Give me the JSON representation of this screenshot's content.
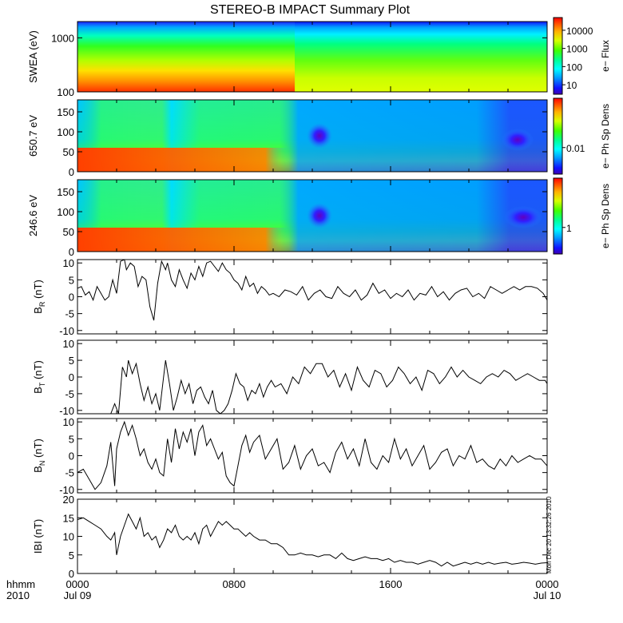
{
  "title": "STEREO-B IMPACT Summary Plot",
  "stamp": "Mon Dec 20 13:32:26 2010",
  "x_axis": {
    "unit_label": "hhmm",
    "year_label": "2010",
    "ticks": [
      {
        "t": 0,
        "top": "0000",
        "bottom": "Jul 09"
      },
      {
        "t": 8,
        "top": "0800",
        "bottom": ""
      },
      {
        "t": 16,
        "top": "1600",
        "bottom": ""
      },
      {
        "t": 24,
        "top": "0000",
        "bottom": "Jul 10"
      }
    ]
  },
  "chart_data": [
    {
      "type": "heatmap",
      "name": "swea",
      "ylabel": "SWEA (eV)",
      "yscale": "log",
      "ylim": [
        100,
        2000
      ],
      "yticks": [
        100,
        1000
      ],
      "ytick_labels": [
        "100",
        "1000"
      ],
      "colorbar_label": "e− Flux",
      "colorbar_ticks": [
        "10",
        "100",
        "1000",
        "10000"
      ],
      "colorbar_log": true,
      "colorbar_range": [
        3,
        50000
      ]
    },
    {
      "type": "heatmap",
      "name": "pad650",
      "ylabel": "650.7 eV",
      "ylim": [
        0,
        180
      ],
      "yticks": [
        0,
        50,
        100,
        150
      ],
      "ytick_labels": [
        "0",
        "50",
        "100",
        "150"
      ],
      "colorbar_label": "e− Ph Sp Dens",
      "colorbar_ticks": [
        "0.01"
      ]
    },
    {
      "type": "heatmap",
      "name": "pad246",
      "ylabel": "246.6 eV",
      "ylim": [
        0,
        180
      ],
      "yticks": [
        0,
        50,
        100,
        150
      ],
      "ytick_labels": [
        "0",
        "50",
        "100",
        "150"
      ],
      "colorbar_label": "e− Ph Sp Dens",
      "colorbar_ticks": [
        "1"
      ]
    },
    {
      "type": "line",
      "name": "BR",
      "ylabel_main": "B",
      "ylabel_sub": "R",
      "ylabel_unit": "(nT)",
      "ylim": [
        -11,
        11
      ],
      "yticks": [
        -10,
        -5,
        0,
        5,
        10
      ],
      "x": [
        0,
        0.2,
        0.4,
        0.6,
        0.8,
        1.0,
        1.2,
        1.4,
        1.6,
        1.8,
        2.0,
        2.2,
        2.4,
        2.5,
        2.7,
        2.9,
        3.1,
        3.3,
        3.5,
        3.7,
        3.9,
        4.1,
        4.3,
        4.5,
        4.6,
        4.8,
        5.0,
        5.2,
        5.4,
        5.6,
        5.8,
        6.0,
        6.2,
        6.4,
        6.6,
        6.8,
        7.0,
        7.2,
        7.4,
        7.6,
        7.8,
        8.0,
        8.2,
        8.4,
        8.6,
        8.8,
        9.0,
        9.2,
        9.4,
        9.6,
        9.8,
        10.0,
        10.3,
        10.6,
        10.9,
        11.2,
        11.5,
        11.8,
        12.1,
        12.4,
        12.7,
        13.0,
        13.3,
        13.6,
        13.9,
        14.2,
        14.5,
        14.8,
        15.1,
        15.4,
        15.7,
        16.0,
        16.3,
        16.6,
        16.9,
        17.2,
        17.5,
        17.8,
        18.1,
        18.4,
        18.7,
        19.0,
        19.3,
        19.6,
        19.9,
        20.2,
        20.5,
        20.8,
        21.1,
        21.4,
        21.7,
        22.0,
        22.3,
        22.6,
        22.9,
        23.2,
        23.5,
        23.8,
        24.0
      ],
      "values": [
        2.5,
        3,
        0.5,
        1.5,
        -1,
        3,
        1,
        -1,
        0,
        5,
        1,
        10.5,
        11,
        8,
        10,
        9,
        3,
        6,
        5,
        -3,
        -7,
        4,
        10.5,
        8,
        10,
        5,
        3,
        8,
        5,
        2.5,
        7,
        5,
        9,
        6,
        10,
        10.5,
        9,
        7.5,
        10,
        8,
        7,
        5,
        4,
        2,
        6,
        3,
        4,
        1,
        3,
        2,
        0.5,
        1,
        0,
        2,
        1.5,
        0.5,
        3,
        -1,
        1,
        2,
        0,
        -0.5,
        3,
        1,
        0,
        2,
        -1,
        0.5,
        4,
        1,
        2,
        -0.5,
        1,
        0,
        2,
        -1,
        1,
        0.5,
        3,
        0,
        1.5,
        -1,
        1,
        2,
        2.5,
        0,
        1,
        -0.5,
        3,
        2,
        1,
        2,
        3,
        2,
        3,
        3,
        2.5,
        1,
        -1
      ]
    },
    {
      "type": "line",
      "name": "BT",
      "ylabel_main": "B",
      "ylabel_sub": "T",
      "ylabel_unit": "(nT)",
      "ylim": [
        -11,
        11
      ],
      "yticks": [
        -10,
        -5,
        0,
        5,
        10
      ],
      "x": [
        1.7,
        1.9,
        2.1,
        2.3,
        2.5,
        2.6,
        2.8,
        3.0,
        3.2,
        3.4,
        3.6,
        3.8,
        4.0,
        4.2,
        4.4,
        4.5,
        4.7,
        4.9,
        5.1,
        5.3,
        5.5,
        5.7,
        5.9,
        6.1,
        6.3,
        6.5,
        6.7,
        6.9,
        7.1,
        7.3,
        7.5,
        7.7,
        7.9,
        8.1,
        8.3,
        8.5,
        8.7,
        8.9,
        9.1,
        9.3,
        9.5,
        9.7,
        9.9,
        10.1,
        10.4,
        10.7,
        11.0,
        11.3,
        11.6,
        11.9,
        12.2,
        12.5,
        12.8,
        13.1,
        13.4,
        13.7,
        14.0,
        14.3,
        14.6,
        14.9,
        15.2,
        15.5,
        15.8,
        16.1,
        16.4,
        16.7,
        17.0,
        17.3,
        17.6,
        17.9,
        18.2,
        18.5,
        18.8,
        19.1,
        19.4,
        19.7,
        20.0,
        20.3,
        20.6,
        20.9,
        21.2,
        21.5,
        21.8,
        22.1,
        22.4,
        22.7,
        23.0,
        23.3,
        23.6,
        23.9,
        24.0
      ],
      "values": [
        -11,
        -8,
        -11,
        3,
        0,
        5,
        1,
        4,
        -2,
        -7,
        -3,
        -8,
        -5,
        -10,
        0,
        5,
        -2,
        -10,
        -6,
        -1,
        -5,
        -2,
        -8,
        -4,
        -3,
        -6,
        -8,
        -4,
        -10,
        -11,
        -10,
        -8,
        -4,
        1,
        -2,
        -3,
        -7,
        -4,
        -5,
        -2,
        -6,
        -3,
        -1,
        -3,
        -2,
        -5,
        0,
        -2,
        3,
        1,
        4,
        4,
        0,
        2,
        -3,
        1,
        -4,
        3,
        -1,
        -3,
        2,
        1,
        -3,
        -1,
        3,
        1,
        -2,
        0,
        -4,
        2,
        1,
        -2,
        0,
        3,
        0,
        2,
        0,
        -1,
        -2,
        0,
        1,
        0,
        2,
        1,
        -1,
        0,
        1,
        0,
        -1,
        -1,
        -2
      ]
    },
    {
      "type": "line",
      "name": "BN",
      "ylabel_main": "B",
      "ylabel_sub": "N",
      "ylabel_unit": "(nT)",
      "ylim": [
        -11,
        11
      ],
      "yticks": [
        -10,
        -5,
        0,
        5,
        10
      ],
      "x": [
        0,
        0.3,
        0.6,
        0.9,
        1.2,
        1.5,
        1.7,
        1.9,
        2.0,
        2.2,
        2.4,
        2.6,
        2.8,
        3.0,
        3.2,
        3.4,
        3.6,
        3.8,
        4.0,
        4.2,
        4.4,
        4.6,
        4.8,
        5.0,
        5.2,
        5.4,
        5.6,
        5.8,
        6.0,
        6.2,
        6.4,
        6.6,
        6.8,
        7.0,
        7.2,
        7.4,
        7.6,
        7.8,
        8.0,
        8.2,
        8.4,
        8.6,
        8.8,
        9.0,
        9.3,
        9.6,
        9.9,
        10.2,
        10.5,
        10.8,
        11.1,
        11.4,
        11.7,
        12.0,
        12.3,
        12.6,
        12.9,
        13.2,
        13.5,
        13.8,
        14.1,
        14.4,
        14.7,
        15.0,
        15.3,
        15.6,
        15.9,
        16.2,
        16.5,
        16.8,
        17.1,
        17.4,
        17.7,
        18.0,
        18.3,
        18.6,
        18.9,
        19.2,
        19.5,
        19.8,
        20.1,
        20.4,
        20.7,
        21.0,
        21.3,
        21.6,
        21.9,
        22.2,
        22.5,
        22.8,
        23.1,
        23.4,
        23.7,
        24.0
      ],
      "values": [
        -5,
        -4,
        -7,
        -10,
        -8,
        -3,
        4,
        -9,
        2,
        7,
        10,
        6,
        9,
        5,
        0,
        2,
        -2,
        -4,
        -1,
        -5,
        -6,
        5,
        -2,
        8,
        2,
        7,
        4,
        8,
        0,
        7,
        9,
        3,
        5,
        2,
        -1,
        1,
        -6,
        -8,
        -9,
        -3,
        3,
        6,
        1,
        4,
        6,
        -1,
        2,
        5,
        -4,
        -2,
        3,
        -4,
        0,
        2,
        -3,
        -2,
        -5,
        1,
        4,
        -1,
        2,
        -3,
        5,
        -2,
        -4,
        0,
        -2,
        5,
        -1,
        2,
        -3,
        0,
        3,
        -4,
        -2,
        1,
        2,
        -3,
        0,
        -1,
        3,
        -2,
        -1,
        -3,
        -4,
        -1,
        -3,
        0,
        -2,
        -1,
        0,
        -1,
        -1,
        -3
      ]
    },
    {
      "type": "line",
      "name": "B",
      "ylabel_main": "IBI",
      "ylabel_sub": "",
      "ylabel_unit": "(nT)",
      "ylim": [
        0,
        20
      ],
      "yticks": [
        0,
        5,
        10,
        15,
        20
      ],
      "x": [
        0,
        0.3,
        0.6,
        0.9,
        1.2,
        1.5,
        1.7,
        1.9,
        2.0,
        2.2,
        2.4,
        2.6,
        2.8,
        3.0,
        3.2,
        3.4,
        3.6,
        3.8,
        4.0,
        4.2,
        4.4,
        4.6,
        4.8,
        5.0,
        5.2,
        5.4,
        5.6,
        5.8,
        6.0,
        6.2,
        6.4,
        6.6,
        6.8,
        7.0,
        7.2,
        7.4,
        7.6,
        7.8,
        8.0,
        8.2,
        8.4,
        8.6,
        8.8,
        9.0,
        9.3,
        9.6,
        9.9,
        10.2,
        10.5,
        10.8,
        11.1,
        11.4,
        11.7,
        12.0,
        12.3,
        12.6,
        12.9,
        13.2,
        13.5,
        13.8,
        14.1,
        14.4,
        14.7,
        15.0,
        15.3,
        15.6,
        15.9,
        16.2,
        16.5,
        16.8,
        17.1,
        17.4,
        17.7,
        18.0,
        18.3,
        18.6,
        18.9,
        19.2,
        19.5,
        19.8,
        20.1,
        20.4,
        20.7,
        21.0,
        21.3,
        21.6,
        21.9,
        22.2,
        22.5,
        22.8,
        23.1,
        23.4,
        23.7,
        24.0
      ],
      "values": [
        14.5,
        15,
        14,
        13,
        12,
        10,
        9,
        11,
        5,
        10,
        13,
        16,
        14,
        12,
        15,
        10,
        11,
        9,
        10,
        7,
        9,
        12,
        11,
        13,
        10,
        9,
        10,
        9,
        11,
        8,
        12,
        13,
        10,
        12,
        14,
        13,
        14,
        13,
        12,
        12,
        11,
        10,
        11,
        10,
        9,
        9,
        8,
        8,
        7,
        5,
        5,
        5.5,
        5,
        5,
        4.5,
        5,
        5,
        4,
        5.5,
        4,
        3.5,
        4,
        4.5,
        4,
        4,
        3.5,
        4,
        3,
        3.5,
        3,
        3,
        2.5,
        3,
        3.5,
        3,
        2,
        3,
        2,
        2.5,
        3,
        2.5,
        3,
        2.5,
        3,
        2.5,
        2.8,
        3,
        2.5,
        2.7,
        3,
        2.8,
        2.5,
        2.8,
        2.9
      ]
    }
  ]
}
